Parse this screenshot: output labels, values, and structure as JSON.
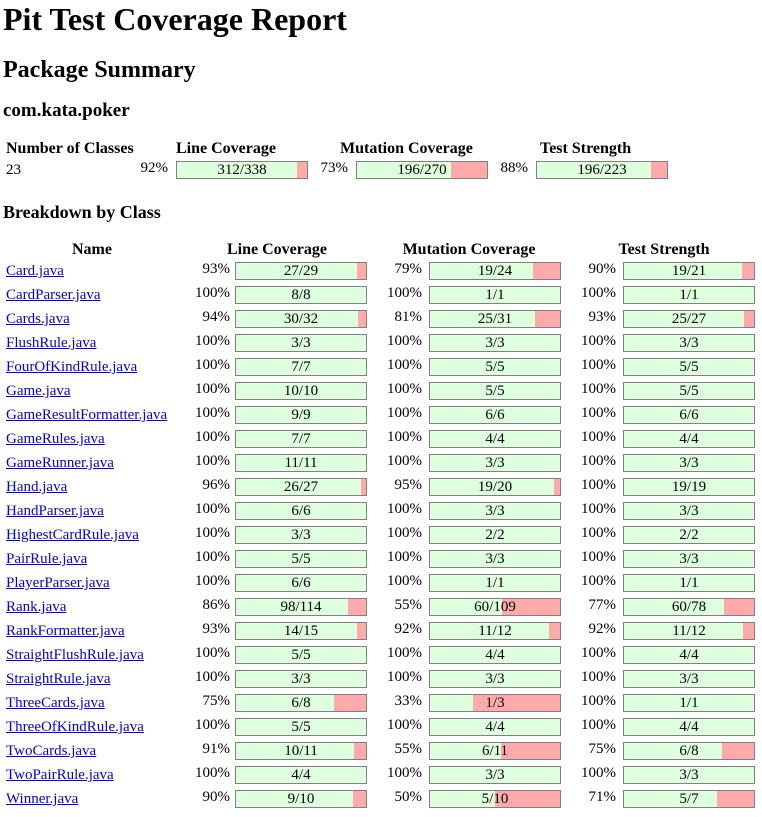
{
  "title": "Pit Test Coverage Report",
  "package_summary_heading": "Package Summary",
  "package_name": "com.kata.poker",
  "summary": {
    "headers": {
      "classes": "Number of Classes",
      "line": "Line Coverage",
      "mutation": "Mutation Coverage",
      "strength": "Test Strength"
    },
    "classes": "23",
    "line": {
      "pct": "92%",
      "label": "312/338",
      "fraction": 0.923
    },
    "mutation": {
      "pct": "73%",
      "label": "196/270",
      "fraction": 0.726
    },
    "strength": {
      "pct": "88%",
      "label": "196/223",
      "fraction": 0.879
    }
  },
  "breakdown_heading": "Breakdown by Class",
  "table_headers": {
    "name": "Name",
    "line": "Line Coverage",
    "mutation": "Mutation Coverage",
    "strength": "Test Strength"
  },
  "colors": {
    "covered": "#ddffdd",
    "uncovered": "#ffaaaa",
    "link": "#0000ee"
  },
  "rows": [
    {
      "name": "Card.java",
      "line": {
        "pct": "93%",
        "label": "27/29",
        "fraction": 0.931
      },
      "mutation": {
        "pct": "79%",
        "label": "19/24",
        "fraction": 0.792
      },
      "strength": {
        "pct": "90%",
        "label": "19/21",
        "fraction": 0.905
      }
    },
    {
      "name": "CardParser.java",
      "line": {
        "pct": "100%",
        "label": "8/8",
        "fraction": 1
      },
      "mutation": {
        "pct": "100%",
        "label": "1/1",
        "fraction": 1
      },
      "strength": {
        "pct": "100%",
        "label": "1/1",
        "fraction": 1
      }
    },
    {
      "name": "Cards.java",
      "line": {
        "pct": "94%",
        "label": "30/32",
        "fraction": 0.9375
      },
      "mutation": {
        "pct": "81%",
        "label": "25/31",
        "fraction": 0.806
      },
      "strength": {
        "pct": "93%",
        "label": "25/27",
        "fraction": 0.926
      }
    },
    {
      "name": "FlushRule.java",
      "line": {
        "pct": "100%",
        "label": "3/3",
        "fraction": 1
      },
      "mutation": {
        "pct": "100%",
        "label": "3/3",
        "fraction": 1
      },
      "strength": {
        "pct": "100%",
        "label": "3/3",
        "fraction": 1
      }
    },
    {
      "name": "FourOfKindRule.java",
      "line": {
        "pct": "100%",
        "label": "7/7",
        "fraction": 1
      },
      "mutation": {
        "pct": "100%",
        "label": "5/5",
        "fraction": 1
      },
      "strength": {
        "pct": "100%",
        "label": "5/5",
        "fraction": 1
      }
    },
    {
      "name": "Game.java",
      "line": {
        "pct": "100%",
        "label": "10/10",
        "fraction": 1
      },
      "mutation": {
        "pct": "100%",
        "label": "5/5",
        "fraction": 1
      },
      "strength": {
        "pct": "100%",
        "label": "5/5",
        "fraction": 1
      }
    },
    {
      "name": "GameResultFormatter.java",
      "line": {
        "pct": "100%",
        "label": "9/9",
        "fraction": 1
      },
      "mutation": {
        "pct": "100%",
        "label": "6/6",
        "fraction": 1
      },
      "strength": {
        "pct": "100%",
        "label": "6/6",
        "fraction": 1
      }
    },
    {
      "name": "GameRules.java",
      "line": {
        "pct": "100%",
        "label": "7/7",
        "fraction": 1
      },
      "mutation": {
        "pct": "100%",
        "label": "4/4",
        "fraction": 1
      },
      "strength": {
        "pct": "100%",
        "label": "4/4",
        "fraction": 1
      }
    },
    {
      "name": "GameRunner.java",
      "line": {
        "pct": "100%",
        "label": "11/11",
        "fraction": 1
      },
      "mutation": {
        "pct": "100%",
        "label": "3/3",
        "fraction": 1
      },
      "strength": {
        "pct": "100%",
        "label": "3/3",
        "fraction": 1
      }
    },
    {
      "name": "Hand.java",
      "line": {
        "pct": "96%",
        "label": "26/27",
        "fraction": 0.963
      },
      "mutation": {
        "pct": "95%",
        "label": "19/20",
        "fraction": 0.95
      },
      "strength": {
        "pct": "100%",
        "label": "19/19",
        "fraction": 1
      }
    },
    {
      "name": "HandParser.java",
      "line": {
        "pct": "100%",
        "label": "6/6",
        "fraction": 1
      },
      "mutation": {
        "pct": "100%",
        "label": "3/3",
        "fraction": 1
      },
      "strength": {
        "pct": "100%",
        "label": "3/3",
        "fraction": 1
      }
    },
    {
      "name": "HighestCardRule.java",
      "line": {
        "pct": "100%",
        "label": "3/3",
        "fraction": 1
      },
      "mutation": {
        "pct": "100%",
        "label": "2/2",
        "fraction": 1
      },
      "strength": {
        "pct": "100%",
        "label": "2/2",
        "fraction": 1
      }
    },
    {
      "name": "PairRule.java",
      "line": {
        "pct": "100%",
        "label": "5/5",
        "fraction": 1
      },
      "mutation": {
        "pct": "100%",
        "label": "3/3",
        "fraction": 1
      },
      "strength": {
        "pct": "100%",
        "label": "3/3",
        "fraction": 1
      }
    },
    {
      "name": "PlayerParser.java",
      "line": {
        "pct": "100%",
        "label": "6/6",
        "fraction": 1
      },
      "mutation": {
        "pct": "100%",
        "label": "1/1",
        "fraction": 1
      },
      "strength": {
        "pct": "100%",
        "label": "1/1",
        "fraction": 1
      }
    },
    {
      "name": "Rank.java",
      "line": {
        "pct": "86%",
        "label": "98/114",
        "fraction": 0.86
      },
      "mutation": {
        "pct": "55%",
        "label": "60/109",
        "fraction": 0.55
      },
      "strength": {
        "pct": "77%",
        "label": "60/78",
        "fraction": 0.769
      }
    },
    {
      "name": "RankFormatter.java",
      "line": {
        "pct": "93%",
        "label": "14/15",
        "fraction": 0.933
      },
      "mutation": {
        "pct": "92%",
        "label": "11/12",
        "fraction": 0.917
      },
      "strength": {
        "pct": "92%",
        "label": "11/12",
        "fraction": 0.917
      }
    },
    {
      "name": "StraightFlushRule.java",
      "line": {
        "pct": "100%",
        "label": "5/5",
        "fraction": 1
      },
      "mutation": {
        "pct": "100%",
        "label": "4/4",
        "fraction": 1
      },
      "strength": {
        "pct": "100%",
        "label": "4/4",
        "fraction": 1
      }
    },
    {
      "name": "StraightRule.java",
      "line": {
        "pct": "100%",
        "label": "3/3",
        "fraction": 1
      },
      "mutation": {
        "pct": "100%",
        "label": "3/3",
        "fraction": 1
      },
      "strength": {
        "pct": "100%",
        "label": "3/3",
        "fraction": 1
      }
    },
    {
      "name": "ThreeCards.java",
      "line": {
        "pct": "75%",
        "label": "6/8",
        "fraction": 0.75
      },
      "mutation": {
        "pct": "33%",
        "label": "1/3",
        "fraction": 0.333
      },
      "strength": {
        "pct": "100%",
        "label": "1/1",
        "fraction": 1
      }
    },
    {
      "name": "ThreeOfKindRule.java",
      "line": {
        "pct": "100%",
        "label": "5/5",
        "fraction": 1
      },
      "mutation": {
        "pct": "100%",
        "label": "4/4",
        "fraction": 1
      },
      "strength": {
        "pct": "100%",
        "label": "4/4",
        "fraction": 1
      }
    },
    {
      "name": "TwoCards.java",
      "line": {
        "pct": "91%",
        "label": "10/11",
        "fraction": 0.909
      },
      "mutation": {
        "pct": "55%",
        "label": "6/11",
        "fraction": 0.545
      },
      "strength": {
        "pct": "75%",
        "label": "6/8",
        "fraction": 0.75
      }
    },
    {
      "name": "TwoPairRule.java",
      "line": {
        "pct": "100%",
        "label": "4/4",
        "fraction": 1
      },
      "mutation": {
        "pct": "100%",
        "label": "3/3",
        "fraction": 1
      },
      "strength": {
        "pct": "100%",
        "label": "3/3",
        "fraction": 1
      }
    },
    {
      "name": "Winner.java",
      "line": {
        "pct": "90%",
        "label": "9/10",
        "fraction": 0.9
      },
      "mutation": {
        "pct": "50%",
        "label": "5/10",
        "fraction": 0.5
      },
      "strength": {
        "pct": "71%",
        "label": "5/7",
        "fraction": 0.714
      }
    }
  ]
}
